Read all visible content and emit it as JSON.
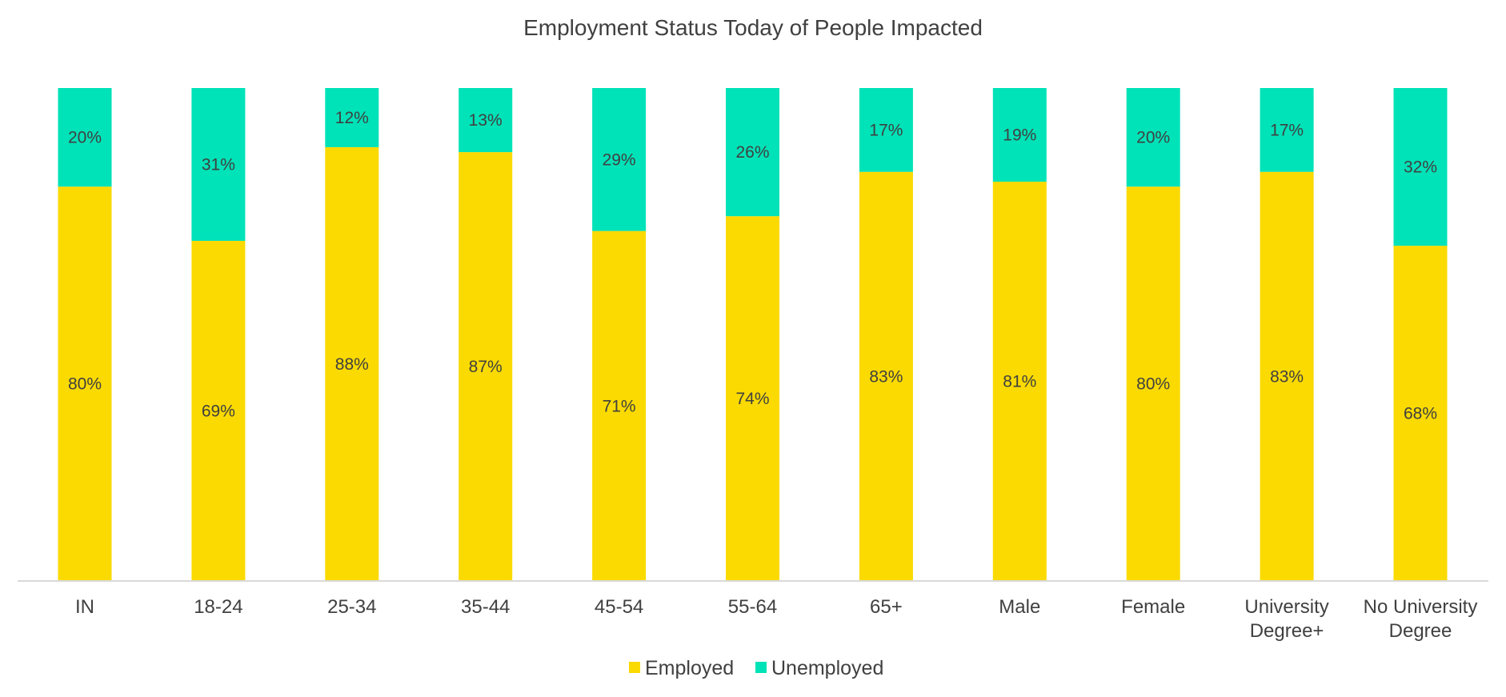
{
  "chart_data": {
    "type": "bar",
    "stacked": true,
    "normalized": true,
    "title": "Employment Status Today of People Impacted",
    "xlabel": "",
    "ylabel": "",
    "ylim": [
      0,
      100
    ],
    "grid": false,
    "legend": {
      "placement": "bottom-center"
    },
    "categories": [
      [
        "IN"
      ],
      [
        "18-24"
      ],
      [
        "25-34"
      ],
      [
        "35-44"
      ],
      [
        "45-54"
      ],
      [
        "55-64"
      ],
      [
        "65+"
      ],
      [
        "Male"
      ],
      [
        "Female"
      ],
      [
        "University",
        "Degree+"
      ],
      [
        "No University",
        "Degree"
      ]
    ],
    "series": [
      {
        "name": "Employed",
        "color": "#FADA00",
        "values": [
          80,
          69,
          88,
          87,
          71,
          74,
          83,
          81,
          80,
          83,
          68
        ]
      },
      {
        "name": "Unemployed",
        "color": "#00E2B8",
        "values": [
          20,
          31,
          12,
          13,
          29,
          26,
          17,
          19,
          20,
          17,
          32
        ]
      }
    ],
    "value_suffix": "%"
  }
}
